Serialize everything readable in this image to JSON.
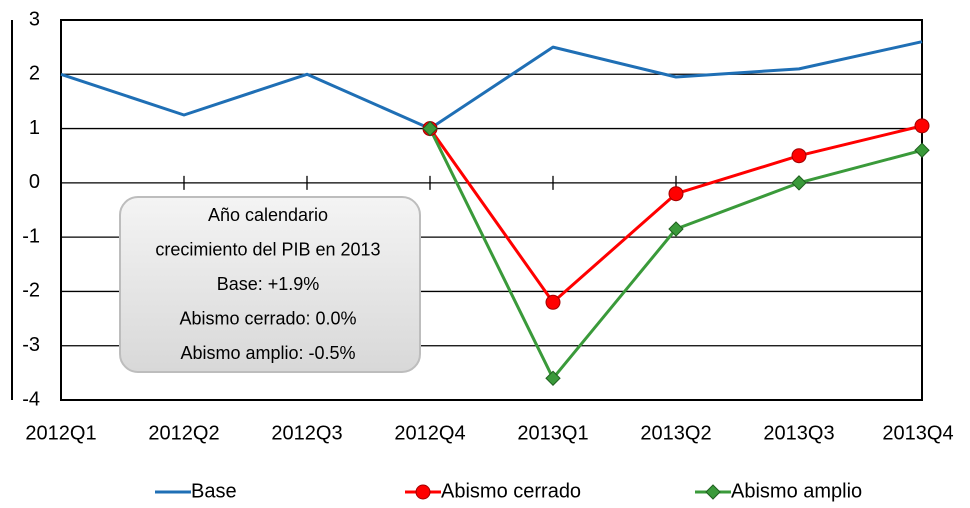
{
  "chart_data": {
    "type": "line",
    "categories": [
      "2012Q1",
      "2012Q2",
      "2012Q3",
      "2012Q4",
      "2013Q1",
      "2013Q2",
      "2013Q3",
      "2013Q4"
    ],
    "series": [
      {
        "name": "Base",
        "color": "#1f6fb5",
        "marker": "none",
        "values": [
          2.0,
          1.25,
          2.0,
          1.0,
          2.5,
          1.95,
          2.1,
          2.6
        ]
      },
      {
        "name": "Abismo cerrado",
        "color": "#ff0000",
        "marker": "circle",
        "values": [
          null,
          null,
          null,
          1.0,
          -2.2,
          -0.2,
          0.5,
          1.05
        ]
      },
      {
        "name": "Abismo amplio",
        "color": "#3a9a3a",
        "marker": "diamond",
        "values": [
          null,
          null,
          null,
          1.0,
          -3.6,
          -0.85,
          0.0,
          0.6
        ]
      }
    ],
    "ylim": [
      -4,
      3
    ],
    "yticks": [
      -4,
      -3,
      -2,
      -1,
      0,
      1,
      2,
      3
    ],
    "grid": true,
    "legend": "bottom",
    "annotation": [
      "Año calendario",
      "crecimiento del PIB en 2013",
      "Base: +1.9%",
      "Abismo cerrado: 0.0%",
      "Abismo amplio: -0.5%"
    ]
  }
}
